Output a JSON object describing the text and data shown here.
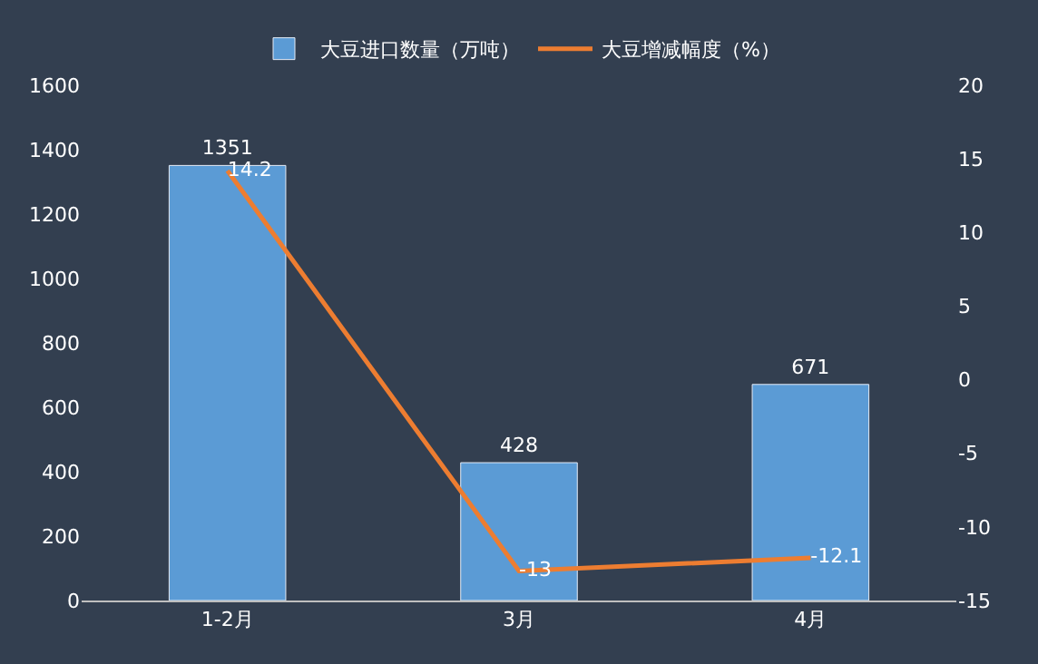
{
  "chart_data": {
    "type": "bar",
    "categories": [
      "1-2月",
      "3月",
      "4月"
    ],
    "series": [
      {
        "name": "大豆进口数量（万吨）",
        "color": "#5b9bd5",
        "values": [
          1351,
          428,
          671
        ]
      },
      {
        "name": "大豆增减幅度（%）",
        "color": "#ed7d31",
        "type": "line",
        "axis": "y2",
        "values": [
          14.2,
          -13,
          -12.1
        ]
      }
    ],
    "ylim": [
      0,
      1600
    ],
    "yticks": [
      0,
      200,
      400,
      600,
      800,
      1000,
      1200,
      1400,
      1600
    ],
    "y2lim": [
      -15,
      20
    ],
    "y2ticks": [
      -15,
      -10,
      -5,
      0,
      5,
      10,
      15,
      20
    ],
    "data_labels": true,
    "legend": "top",
    "grid": false,
    "marker": "none",
    "line_style": "solid"
  }
}
